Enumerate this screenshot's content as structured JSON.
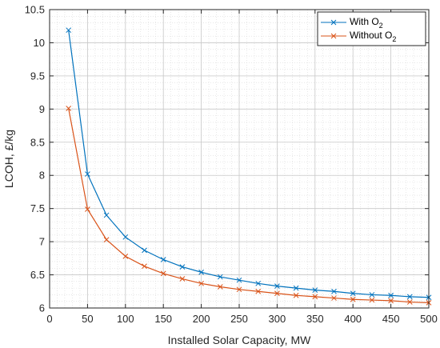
{
  "chart_data": {
    "type": "line",
    "xlabel": "Installed Solar Capacity, MW",
    "ylabel": "LCOH, £/kg",
    "xlim": [
      0,
      500
    ],
    "ylim": [
      6,
      10.5
    ],
    "xticks": [
      0,
      50,
      100,
      150,
      200,
      250,
      300,
      350,
      400,
      450,
      500
    ],
    "yticks": [
      6,
      6.5,
      7,
      7.5,
      8,
      8.5,
      9,
      9.5,
      10,
      10.5
    ],
    "grid": "minor dotted grid on",
    "legend_position": "top-right",
    "x": [
      25,
      50,
      75,
      100,
      125,
      150,
      175,
      200,
      225,
      250,
      275,
      300,
      325,
      350,
      375,
      400,
      425,
      450,
      475,
      500
    ],
    "series": [
      {
        "name": "With O2",
        "legend_main": "With O",
        "legend_sub": "2",
        "color": "#0072BD",
        "marker": "x",
        "values": [
          10.19,
          8.02,
          7.4,
          7.07,
          6.87,
          6.73,
          6.62,
          6.54,
          6.47,
          6.42,
          6.37,
          6.33,
          6.3,
          6.27,
          6.25,
          6.22,
          6.2,
          6.19,
          6.17,
          6.16
        ]
      },
      {
        "name": "Without O2",
        "legend_main": "Without O",
        "legend_sub": "2",
        "color": "#D95319",
        "marker": "x",
        "values": [
          9.01,
          7.49,
          7.03,
          6.78,
          6.63,
          6.52,
          6.44,
          6.37,
          6.32,
          6.28,
          6.25,
          6.22,
          6.19,
          6.17,
          6.15,
          6.13,
          6.12,
          6.11,
          6.09,
          6.08
        ]
      }
    ]
  }
}
